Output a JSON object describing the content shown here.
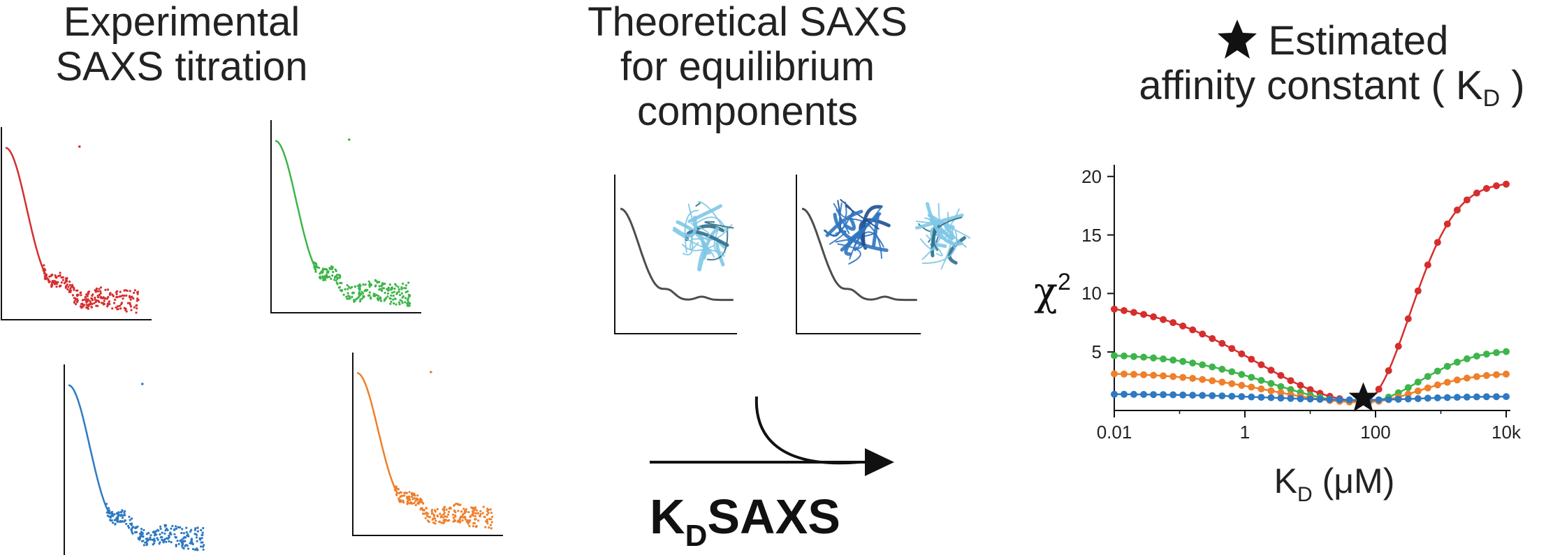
{
  "headings": {
    "experimental": [
      "Experimental",
      "SAXS titration"
    ],
    "theoretical": [
      "Theoretical SAXS",
      "for equilibrium",
      "components"
    ],
    "estimated_line1": "Estimated",
    "estimated_line2_prefix": "affinity constant ( K",
    "estimated_line2_sub": "D",
    "estimated_line2_suffix": " )"
  },
  "method": {
    "name_k": "K",
    "name_sub": "D",
    "name_rest": "SAXS"
  },
  "colors": {
    "red": "#d62e2e",
    "green": "#3db54a",
    "blue": "#2f79c2",
    "orange": "#ef7f2a",
    "protein_light": "#7fc8e6",
    "protein_dark": "#2f74c0",
    "curve_gray": "#4d4d4d"
  },
  "icons": {
    "star": "star-icon",
    "arrow": "arrow-icon"
  },
  "chart_data": {
    "type": "line",
    "xscale": "log",
    "xlim": [
      0.01,
      10000
    ],
    "ylim": [
      0,
      21
    ],
    "xticks": [
      {
        "value": 0.01,
        "label": "0.01"
      },
      {
        "value": 1,
        "label": "1"
      },
      {
        "value": 100,
        "label": "100"
      },
      {
        "value": 10000,
        "label": "10k"
      }
    ],
    "yticks": [
      {
        "value": 5,
        "label": "5"
      },
      {
        "value": 10,
        "label": "10"
      },
      {
        "value": 15,
        "label": "15"
      },
      {
        "value": 20,
        "label": "20"
      }
    ],
    "xlabel_main": "K",
    "xlabel_sub": "D",
    "xlabel_unit": " (μM)",
    "ylabel_main": "χ",
    "ylabel_sup": "2",
    "minimum": {
      "x": 65,
      "y": 1.1
    },
    "series": [
      {
        "color": "#d62e2e",
        "plateau_left": 9.2,
        "plateau_right": 19.5,
        "min": 0.8,
        "left_w": 2.3,
        "right_w": 1.0
      },
      {
        "color": "#3db54a",
        "plateau_left": 4.8,
        "plateau_right": 5.2,
        "min": 0.7,
        "left_w": 2.0,
        "right_w": 1.2
      },
      {
        "color": "#ef7f2a",
        "plateau_left": 3.2,
        "plateau_right": 3.2,
        "min": 0.7,
        "left_w": 2.0,
        "right_w": 1.2
      },
      {
        "color": "#2f79c2",
        "plateau_left": 1.4,
        "plateau_right": 1.2,
        "min": 0.9,
        "left_w": 2.0,
        "right_w": 1.2
      }
    ]
  }
}
